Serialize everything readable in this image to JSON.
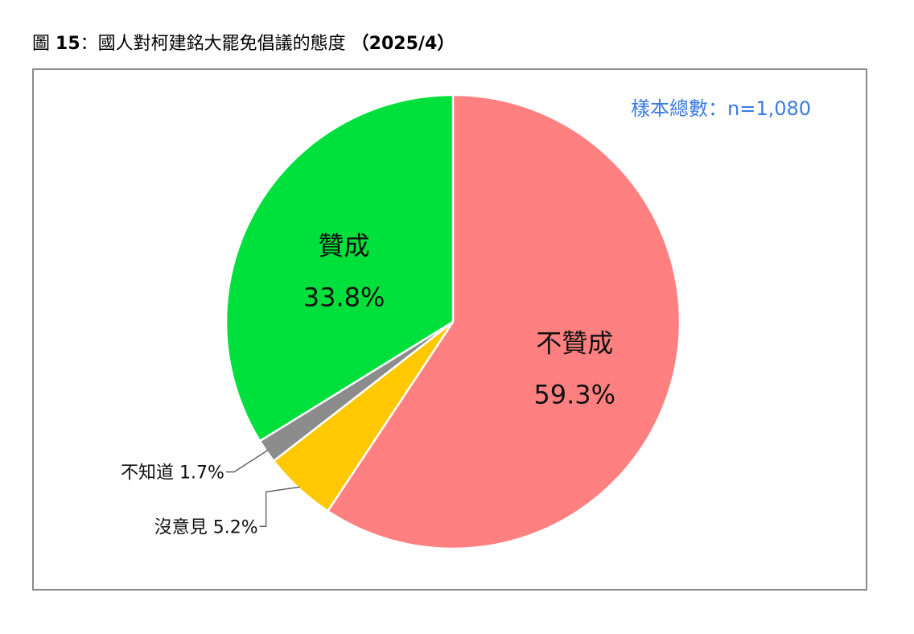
{
  "figure": {
    "title_prefix": "圖",
    "title_number": "15",
    "title_colon": "：",
    "title_text": "國人對柯建銘大罷免倡議的態度",
    "title_date": "（2025/4）"
  },
  "sample_note": "樣本總數：n=1,080",
  "colors": {
    "oppose": "#ff8080",
    "support": "#00e03c",
    "no_opinion": "#ffc800",
    "dont_know": "#8c8c8c",
    "sample_note": "#3a7be0"
  },
  "chart_data": {
    "type": "pie",
    "start": "12 o'clock, clockwise",
    "slices": [
      {
        "label": "不贊成",
        "value": 59.3,
        "value_label": "59.3%",
        "color": "#ff8080"
      },
      {
        "label": "沒意見",
        "value": 5.2,
        "value_label": "5.2%",
        "color": "#ffc800"
      },
      {
        "label": "不知道",
        "value": 1.7,
        "value_label": "1.7%",
        "color": "#8c8c8c"
      },
      {
        "label": "贊成",
        "value": 33.8,
        "value_label": "33.8%",
        "color": "#00e03c"
      }
    ]
  }
}
